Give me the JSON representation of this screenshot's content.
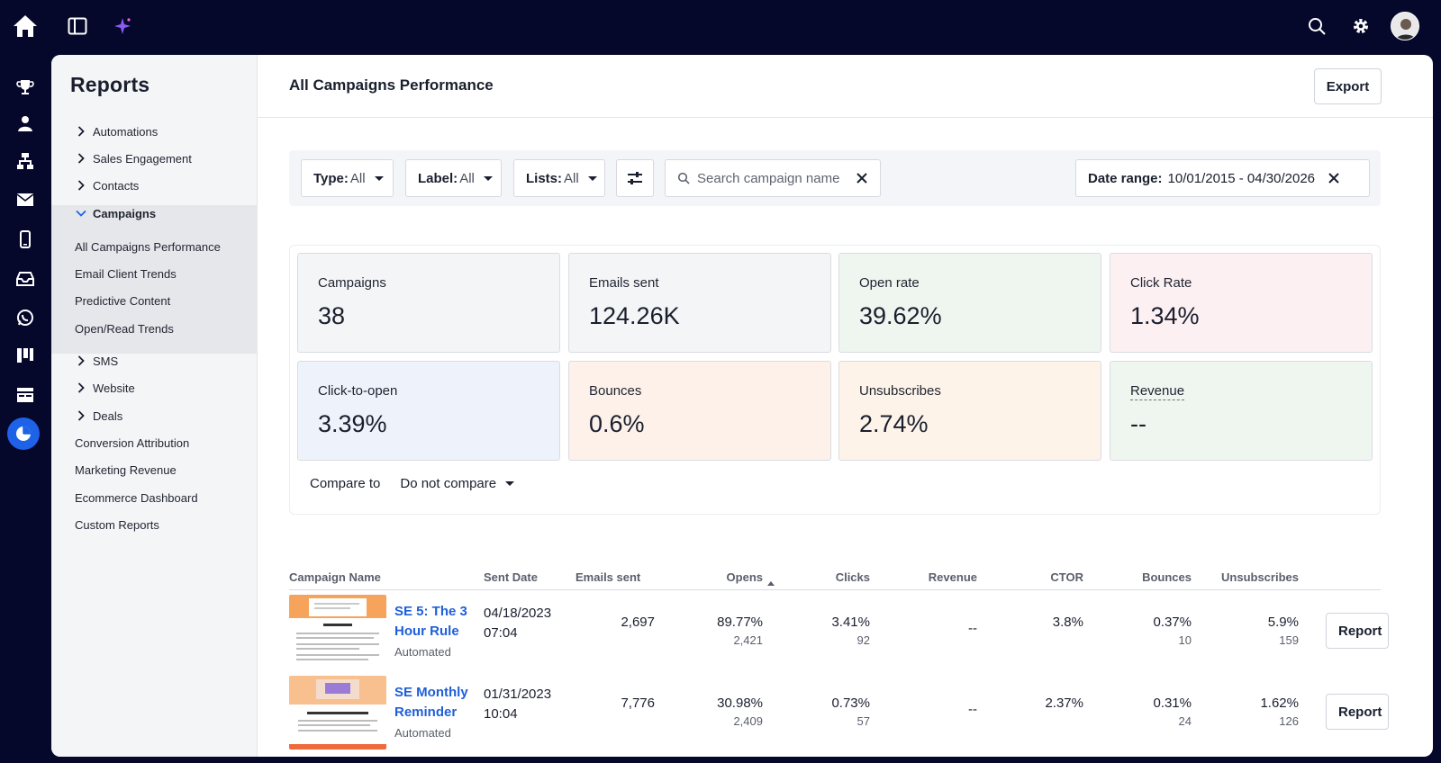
{
  "colors": {
    "topbar": "#05072b",
    "accent": "#1e62e8",
    "link": "#1e5fd8"
  },
  "topbar": {
    "left_icons": [
      "home-icon",
      "sidebar-toggle-icon",
      "sparkle-icon"
    ],
    "right_icons": [
      "search-icon",
      "gear-icon",
      "user-avatar"
    ]
  },
  "rail": [
    "trophy-icon",
    "contacts-icon",
    "automations-icon",
    "email-icon",
    "mobile-icon",
    "inbox-icon",
    "whatsapp-icon",
    "pipelines-icon",
    "website-icon",
    "reports-icon"
  ],
  "sidebar": {
    "title": "Reports",
    "groups": [
      {
        "label": "Automations"
      },
      {
        "label": "Sales Engagement"
      },
      {
        "label": "Contacts"
      },
      {
        "label": "Campaigns"
      }
    ],
    "campaign_items": [
      {
        "label": "All Campaigns Performance"
      },
      {
        "label": "Email Client Trends"
      },
      {
        "label": "Predictive Content"
      },
      {
        "label": "Open/Read Trends"
      }
    ],
    "groups_after": [
      {
        "label": "SMS"
      },
      {
        "label": "Website"
      },
      {
        "label": "Deals"
      }
    ],
    "plain_items": [
      {
        "label": "Conversion Attribution"
      },
      {
        "label": "Marketing Revenue"
      },
      {
        "label": "Ecommerce Dashboard"
      },
      {
        "label": "Custom Reports"
      }
    ]
  },
  "header": {
    "title": "All Campaigns Performance",
    "export_label": "Export"
  },
  "filters": {
    "type": {
      "label": "Type:",
      "value": "All"
    },
    "label": {
      "label": "Label:",
      "value": "All"
    },
    "lists": {
      "label": "Lists:",
      "value": "All"
    },
    "search_placeholder": "Search campaign name",
    "date_range": {
      "label": "Date range:",
      "value": "10/01/2015 - 04/30/2026"
    }
  },
  "stats": [
    {
      "label": "Campaigns",
      "value": "38",
      "bg": "#f4f5f7"
    },
    {
      "label": "Emails sent",
      "value": "124.26K",
      "bg": "#f4f5f7"
    },
    {
      "label": "Open rate",
      "value": "39.62%",
      "bg": "#eef6ef"
    },
    {
      "label": "Click Rate",
      "value": "1.34%",
      "bg": "#fdf0f3"
    },
    {
      "label": "Click-to-open",
      "value": "3.39%",
      "bg": "#eef3fb"
    },
    {
      "label": "Bounces",
      "value": "0.6%",
      "bg": "#fdf1ea"
    },
    {
      "label": "Unsubscribes",
      "value": "2.74%",
      "bg": "#fdf3e9"
    },
    {
      "label": "Revenue",
      "value": "--",
      "bg": "#eef6ef"
    }
  ],
  "compare": {
    "label": "Compare to",
    "value": "Do not compare"
  },
  "table": {
    "columns": [
      "Campaign Name",
      "Sent Date",
      "Emails sent",
      "Opens",
      "Clicks",
      "Revenue",
      "CTOR",
      "Bounces",
      "Unsubscribes"
    ],
    "rows": [
      {
        "name_line1": "SE 5: The 3",
        "name_line2": "Hour Rule",
        "type": "Automated",
        "date": "04/18/2023",
        "time": "07:04",
        "emails_sent": "2,697",
        "opens": "89.77%",
        "opens_count": "2,421",
        "clicks": "3.41%",
        "clicks_count": "92",
        "revenue": "--",
        "ctor": "3.8%",
        "bounces": "0.37%",
        "bounces_count": "10",
        "unsubscribes": "5.9%",
        "unsubscribes_count": "159",
        "report_label": "Report"
      },
      {
        "name_line1": "SE Monthly",
        "name_line2": "Reminder",
        "type": "Automated",
        "date": "01/31/2023",
        "time": "10:04",
        "emails_sent": "7,776",
        "opens": "30.98%",
        "opens_count": "2,409",
        "clicks": "0.73%",
        "clicks_count": "57",
        "revenue": "--",
        "ctor": "2.37%",
        "bounces": "0.31%",
        "bounces_count": "24",
        "unsubscribes": "1.62%",
        "unsubscribes_count": "126",
        "report_label": "Report"
      }
    ]
  }
}
